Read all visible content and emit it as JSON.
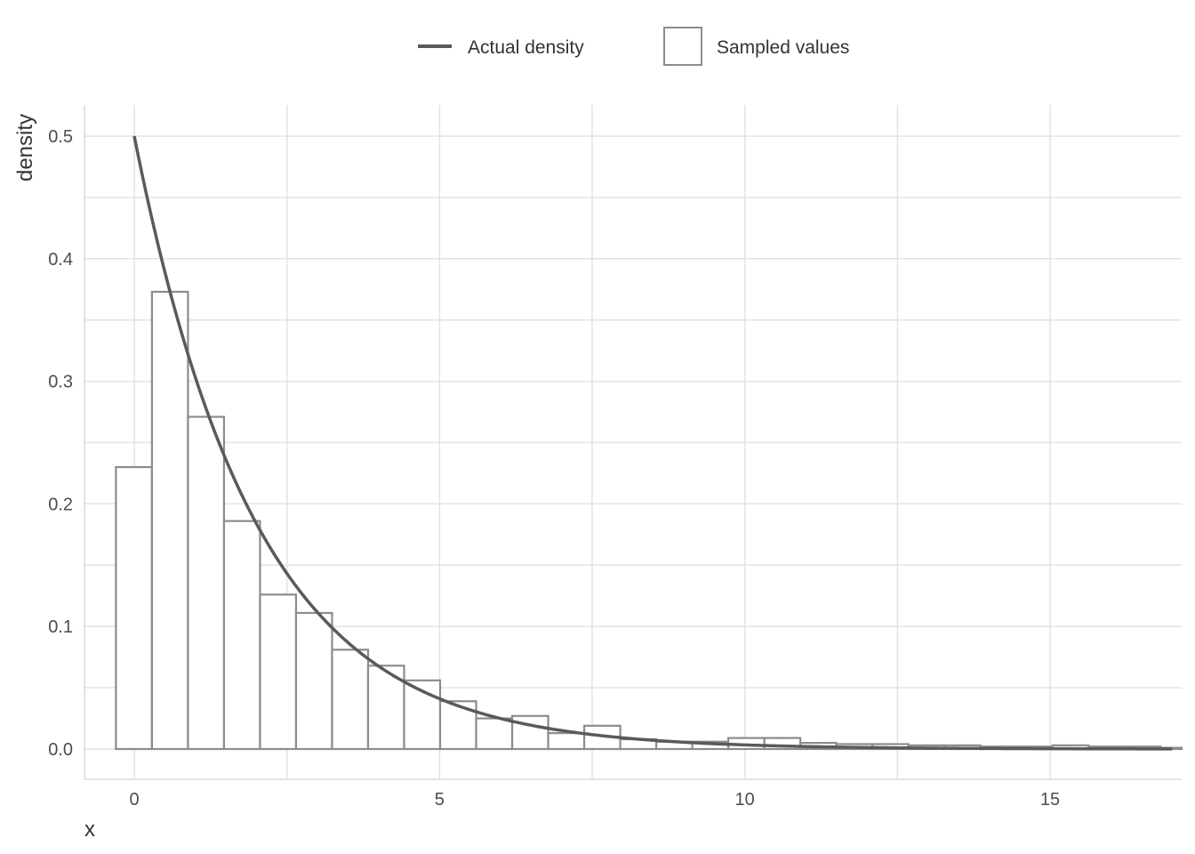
{
  "chart_data": {
    "type": "bar",
    "xlabel": "x",
    "ylabel": "density",
    "xlim": [
      -0.8,
      17
    ],
    "ylim": [
      -0.025,
      0.525
    ],
    "x_ticks": [
      0,
      5,
      10,
      15
    ],
    "y_ticks": [
      0.0,
      0.1,
      0.2,
      0.3,
      0.4,
      0.5
    ],
    "y_tick_labels": [
      "0.0",
      "0.1",
      "0.2",
      "0.3",
      "0.4",
      "0.5"
    ],
    "x_tick_labels": [
      "0",
      "5",
      "10",
      "15"
    ],
    "grid": true,
    "legend_position": "top",
    "legend": {
      "line_label": "Actual density",
      "box_label": "Sampled values"
    },
    "histogram": {
      "name": "Sampled values",
      "bin_start": -0.3,
      "bin_width": 0.59,
      "values": [
        0.23,
        0.373,
        0.271,
        0.186,
        0.126,
        0.111,
        0.081,
        0.068,
        0.056,
        0.039,
        0.025,
        0.027,
        0.013,
        0.019,
        0.008,
        0.006,
        0.006,
        0.009,
        0.009,
        0.005,
        0.004,
        0.004,
        0.003,
        0.003,
        0.002,
        0.002,
        0.003,
        0.002,
        0.002,
        0.001,
        0.002,
        0.003,
        0.001,
        0.001,
        0.001
      ],
      "stroke": "#8c8c8c",
      "fill": "#ffffff"
    },
    "density_curve": {
      "name": "Actual density",
      "function": "exponential",
      "rate": 0.5,
      "x_start": 0,
      "x_end": 17,
      "color": "#5a5a5a"
    },
    "grid_color": "#e3e3e3",
    "axis_color": "#dcdcdc"
  }
}
